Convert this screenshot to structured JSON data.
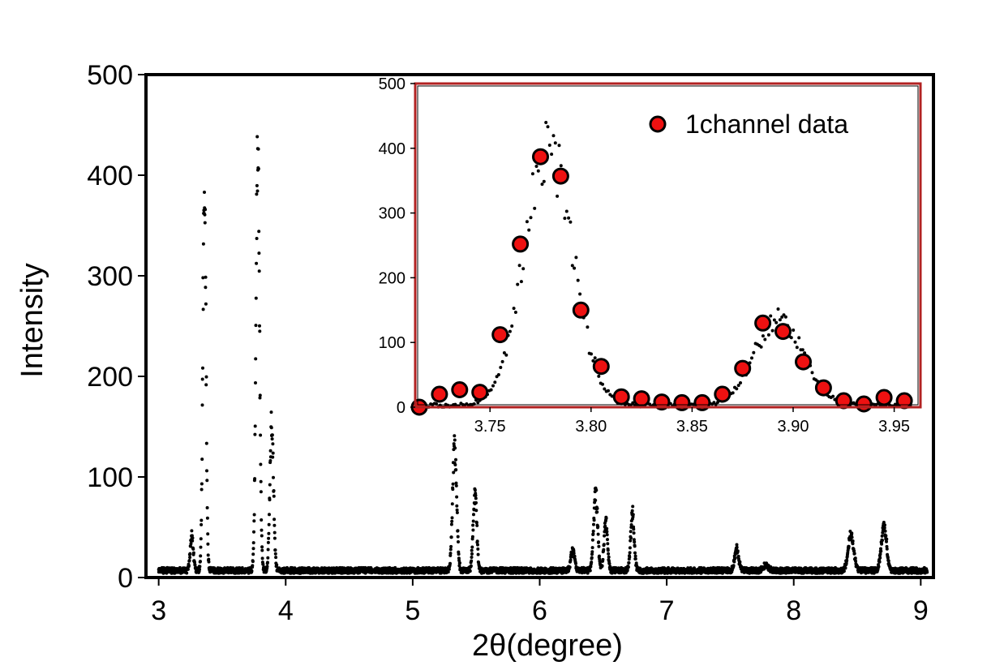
{
  "chart_data": [
    {
      "id": "main",
      "type": "scatter",
      "xlabel": "2θ(degree)",
      "ylabel": "Intensity",
      "xlim": [
        2.9,
        9.1
      ],
      "ylim": [
        0,
        500
      ],
      "xticks": [
        "3",
        "4",
        "5",
        "6",
        "7",
        "8",
        "9"
      ],
      "yticks": [
        "0",
        "100",
        "200",
        "300",
        "400",
        "500"
      ],
      "marker_color": "#000000",
      "grid": false,
      "baseline": 7,
      "peaks": [
        {
          "center": 3.26,
          "height": 35,
          "width": 0.012
        },
        {
          "center": 3.36,
          "height": 410,
          "width": 0.012
        },
        {
          "center": 3.78,
          "height": 440,
          "width": 0.014
        },
        {
          "center": 3.89,
          "height": 150,
          "width": 0.014
        },
        {
          "center": 5.33,
          "height": 128,
          "width": 0.016
        },
        {
          "center": 5.49,
          "height": 78,
          "width": 0.014
        },
        {
          "center": 6.26,
          "height": 22,
          "width": 0.014
        },
        {
          "center": 6.44,
          "height": 76,
          "width": 0.016
        },
        {
          "center": 6.52,
          "height": 48,
          "width": 0.014
        },
        {
          "center": 6.73,
          "height": 58,
          "width": 0.014
        },
        {
          "center": 7.55,
          "height": 22,
          "width": 0.016
        },
        {
          "center": 7.78,
          "height": 6,
          "width": 0.02
        },
        {
          "center": 8.45,
          "height": 36,
          "width": 0.022
        },
        {
          "center": 8.71,
          "height": 46,
          "width": 0.02
        }
      ]
    },
    {
      "id": "inset",
      "type": "scatter",
      "xlim": [
        3.713,
        3.963
      ],
      "ylim": [
        0,
        500
      ],
      "xticks": [
        "3.75",
        "3.80",
        "3.85",
        "3.90",
        "3.95"
      ],
      "yticks": [
        "0",
        "100",
        "200",
        "300",
        "400",
        "500"
      ],
      "frame_color": "#b22222",
      "marker_color": "#ee1111",
      "legend_position": "top-right",
      "series": [
        {
          "name": "1channel data",
          "marker": "circle",
          "x": [
            3.715,
            3.725,
            3.735,
            3.745,
            3.755,
            3.765,
            3.775,
            3.785,
            3.795,
            3.805,
            3.815,
            3.825,
            3.835,
            3.845,
            3.855,
            3.865,
            3.875,
            3.885,
            3.895,
            3.905,
            3.915,
            3.925,
            3.935,
            3.945,
            3.955
          ],
          "y": [
            0,
            20,
            27,
            23,
            112,
            252,
            387,
            357,
            150,
            63,
            16,
            13,
            8,
            7,
            7,
            20,
            60,
            130,
            117,
            70,
            30,
            10,
            5,
            15,
            10
          ]
        }
      ],
      "raw_peaks": [
        {
          "center": 3.779,
          "height": 410,
          "width": 0.012
        },
        {
          "center": 3.893,
          "height": 138,
          "width": 0.012
        }
      ]
    }
  ]
}
